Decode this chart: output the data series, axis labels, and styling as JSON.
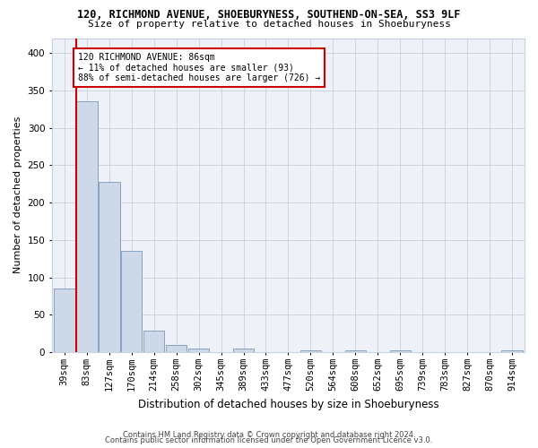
{
  "title1": "120, RICHMOND AVENUE, SHOEBURYNESS, SOUTHEND-ON-SEA, SS3 9LF",
  "title2": "Size of property relative to detached houses in Shoeburyness",
  "xlabel": "Distribution of detached houses by size in Shoeburyness",
  "ylabel": "Number of detached properties",
  "footer1": "Contains HM Land Registry data © Crown copyright and database right 2024.",
  "footer2": "Contains public sector information licensed under the Open Government Licence v3.0.",
  "bar_labels": [
    "39sqm",
    "83sqm",
    "127sqm",
    "170sqm",
    "214sqm",
    "258sqm",
    "302sqm",
    "345sqm",
    "389sqm",
    "433sqm",
    "477sqm",
    "520sqm",
    "564sqm",
    "608sqm",
    "652sqm",
    "695sqm",
    "739sqm",
    "783sqm",
    "827sqm",
    "870sqm",
    "914sqm"
  ],
  "bar_values": [
    85,
    335,
    228,
    135,
    29,
    10,
    5,
    0,
    5,
    0,
    0,
    2,
    0,
    2,
    0,
    3,
    0,
    0,
    0,
    0,
    2
  ],
  "bar_color": "#cdd8e8",
  "bar_edge_color": "#7799bb",
  "grid_color": "#c8d0dc",
  "bg_color": "#eef2f8",
  "annotation_box_color": "#cc0000",
  "property_line_color": "#cc0000",
  "annotation_line1": "120 RICHMOND AVENUE: 86sqm",
  "annotation_line2": "← 11% of detached houses are smaller (93)",
  "annotation_line3": "88% of semi-detached houses are larger (726) →",
  "ylim": [
    0,
    420
  ],
  "yticks": [
    0,
    50,
    100,
    150,
    200,
    250,
    300,
    350,
    400
  ],
  "title1_fontsize": 8.5,
  "title2_fontsize": 8.0,
  "ylabel_fontsize": 8.0,
  "xlabel_fontsize": 8.5,
  "tick_fontsize": 7.5,
  "annot_fontsize": 7.0,
  "footer_fontsize": 6.0
}
